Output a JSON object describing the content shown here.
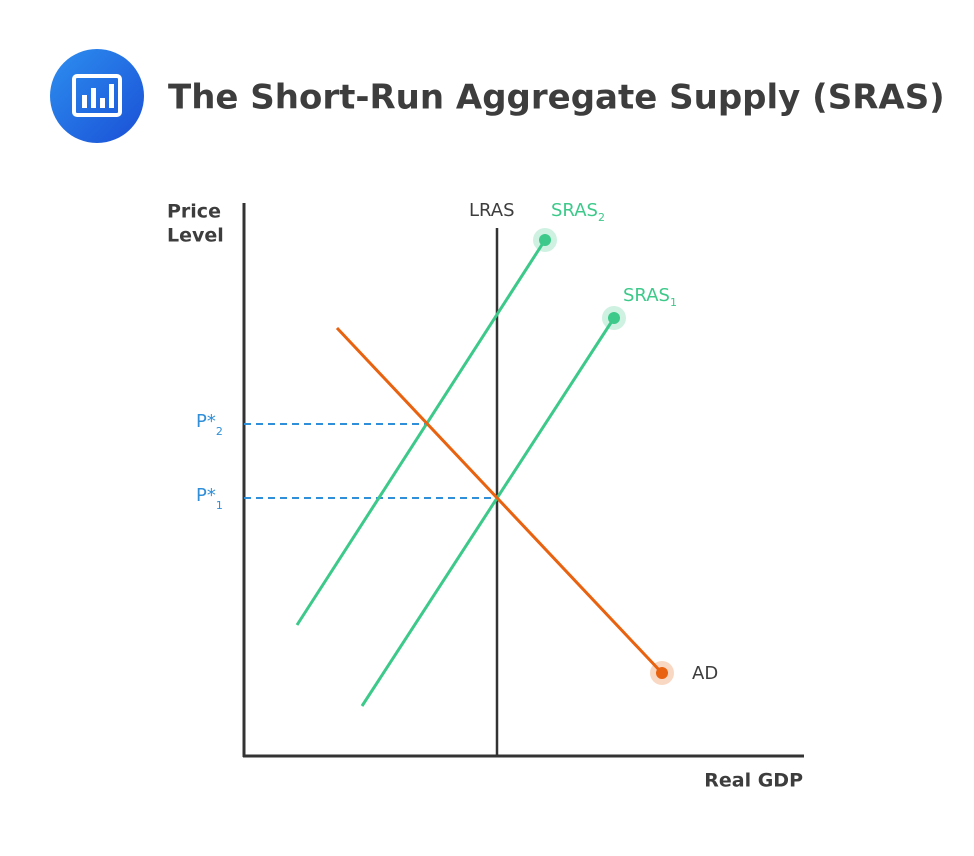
{
  "header": {
    "title": "The Short-Run Aggregate Supply (SRAS)"
  },
  "axes": {
    "y_label": [
      "Price",
      "Level"
    ],
    "x_label": "Real GDP"
  },
  "curves": {
    "lras": "LRAS",
    "sras2": {
      "text": "SRAS",
      "sub": "2"
    },
    "sras1": {
      "text": "SRAS",
      "sub": "1"
    },
    "ad": "AD"
  },
  "price_levels": [
    {
      "text": "P*",
      "sub": "2"
    },
    {
      "text": "P*",
      "sub": "1"
    }
  ]
}
